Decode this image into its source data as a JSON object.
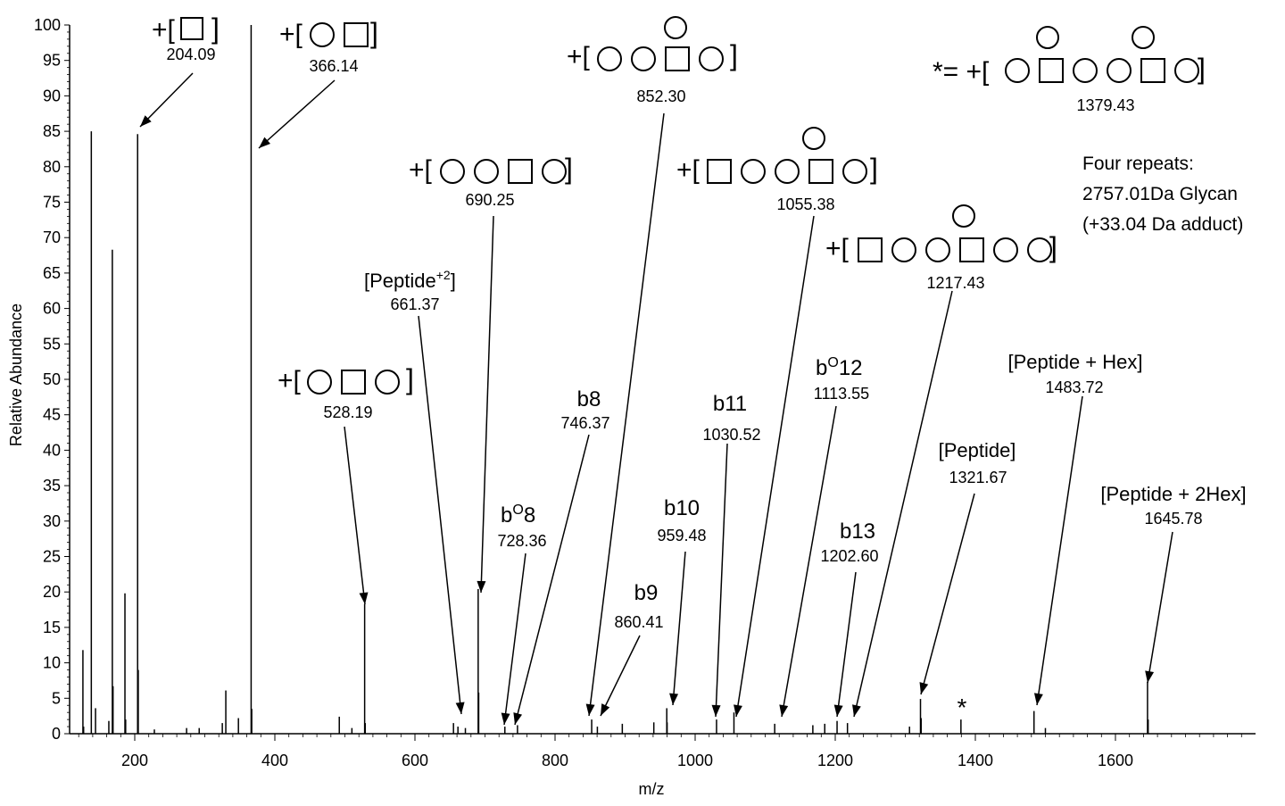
{
  "chart_data": {
    "type": "spectrum",
    "xlabel": "m/z",
    "ylabel": "Relative Abundance",
    "xlim": [
      107,
      1800
    ],
    "ylim": [
      0,
      100
    ],
    "xticks": [
      200,
      400,
      600,
      800,
      1000,
      1200,
      1400,
      1600
    ],
    "yticks": [
      0,
      5,
      10,
      15,
      20,
      25,
      30,
      35,
      40,
      45,
      50,
      55,
      60,
      65,
      70,
      75,
      80,
      85,
      90,
      95,
      100
    ],
    "grid": false,
    "peaks": [
      {
        "mz": 126,
        "intensity": 11.8
      },
      {
        "mz": 127,
        "intensity": 1.0
      },
      {
        "mz": 138,
        "intensity": 85
      },
      {
        "mz": 144,
        "intensity": 3.6
      },
      {
        "mz": 163,
        "intensity": 1.8
      },
      {
        "mz": 168,
        "intensity": 68.3
      },
      {
        "mz": 169,
        "intensity": 6.7
      },
      {
        "mz": 186,
        "intensity": 19.8
      },
      {
        "mz": 187,
        "intensity": 2.0
      },
      {
        "mz": 204.09,
        "intensity": 84.6
      },
      {
        "mz": 205,
        "intensity": 9.0
      },
      {
        "mz": 228,
        "intensity": 0.6
      },
      {
        "mz": 274,
        "intensity": 0.8
      },
      {
        "mz": 292,
        "intensity": 0.8
      },
      {
        "mz": 325,
        "intensity": 1.5
      },
      {
        "mz": 330,
        "intensity": 6.1
      },
      {
        "mz": 348,
        "intensity": 2.2
      },
      {
        "mz": 366.14,
        "intensity": 100
      },
      {
        "mz": 367,
        "intensity": 3.5
      },
      {
        "mz": 492,
        "intensity": 2.4
      },
      {
        "mz": 510,
        "intensity": 0.8
      },
      {
        "mz": 528.19,
        "intensity": 18.3
      },
      {
        "mz": 529,
        "intensity": 1.5
      },
      {
        "mz": 655,
        "intensity": 1.5
      },
      {
        "mz": 661.37,
        "intensity": 1.0
      },
      {
        "mz": 672,
        "intensity": 0.8
      },
      {
        "mz": 690.25,
        "intensity": 20.4
      },
      {
        "mz": 691,
        "intensity": 5.8
      },
      {
        "mz": 728.36,
        "intensity": 1.0
      },
      {
        "mz": 746.37,
        "intensity": 1.2
      },
      {
        "mz": 852.3,
        "intensity": 2.0
      },
      {
        "mz": 860.41,
        "intensity": 1.0
      },
      {
        "mz": 896,
        "intensity": 1.4
      },
      {
        "mz": 941,
        "intensity": 1.6
      },
      {
        "mz": 959.48,
        "intensity": 3.6
      },
      {
        "mz": 960,
        "intensity": 1.6
      },
      {
        "mz": 1030.52,
        "intensity": 2.0
      },
      {
        "mz": 1055.38,
        "intensity": 3.0
      },
      {
        "mz": 1113.55,
        "intensity": 1.4
      },
      {
        "mz": 1168,
        "intensity": 1.2
      },
      {
        "mz": 1185,
        "intensity": 1.4
      },
      {
        "mz": 1202.6,
        "intensity": 1.8
      },
      {
        "mz": 1217.43,
        "intensity": 1.5
      },
      {
        "mz": 1306,
        "intensity": 1.0
      },
      {
        "mz": 1321.67,
        "intensity": 4.9
      },
      {
        "mz": 1322.6,
        "intensity": 2.2
      },
      {
        "mz": 1379.43,
        "intensity": 2.0
      },
      {
        "mz": 1483.72,
        "intensity": 3.2
      },
      {
        "mz": 1500,
        "intensity": 0.8
      },
      {
        "mz": 1645.78,
        "intensity": 7.3
      },
      {
        "mz": 1646.7,
        "intensity": 2.0
      }
    ],
    "annotations": {
      "a204": {
        "prefix": "+[",
        "suffix": "]",
        "mz": "204.09"
      },
      "a366": {
        "prefix": "+[",
        "suffix": "]",
        "mz": "366.14"
      },
      "a528": {
        "prefix": "+[",
        "suffix": "]",
        "mz": "528.19"
      },
      "a690": {
        "prefix": "+[",
        "suffix": "]",
        "mz": "690.25"
      },
      "a852": {
        "prefix": "+[",
        "suffix": "]",
        "mz": "852.30"
      },
      "a1055": {
        "prefix": "+[",
        "suffix": "]",
        "mz": "1055.38"
      },
      "a1217": {
        "prefix": "+[",
        "suffix": "]",
        "mz": "1217.43"
      },
      "a1379": {
        "prefix": "*= +[",
        "suffix": "]",
        "mz": "1379.43"
      },
      "pep2": {
        "name": "[Peptide",
        "sup": "+2",
        "close": "]",
        "mz": "661.37"
      },
      "bo8": {
        "b": "b",
        "o": "O",
        "num": "8",
        "mz": "728.36"
      },
      "b8": {
        "label": "b8",
        "mz": "746.37"
      },
      "b9": {
        "label": "b9",
        "mz": "860.41"
      },
      "b10": {
        "label": "b10",
        "mz": "959.48"
      },
      "b11": {
        "label": "b11",
        "mz": "1030.52"
      },
      "bo12": {
        "b": "b",
        "o": "O",
        "num": "12",
        "mz": "1113.55"
      },
      "b13": {
        "label": "b13",
        "mz": "1202.60"
      },
      "pep": {
        "label": "[Peptide]",
        "mz": "1321.67"
      },
      "hex1": {
        "label": "[Peptide + Hex]",
        "mz": "1483.72"
      },
      "hex2": {
        "label": "[Peptide + 2Hex]",
        "mz": "1645.78"
      },
      "repeats": {
        "line1": "Four repeats:",
        "line2": "2757.01Da Glycan",
        "line3": "(+33.04 Da adduct)"
      },
      "star_label": "*"
    },
    "glycan_glyphs": {
      "a204": [
        "square"
      ],
      "a366": [
        "circle",
        "square"
      ],
      "a528": [
        "circle",
        "square",
        "circle"
      ],
      "a690": [
        "circle",
        "circle",
        "square",
        "circle"
      ],
      "a852": [
        "circle",
        "circle",
        "square",
        "circle"
      ],
      "a1055": [
        "square",
        "circle",
        "circle",
        "square",
        "circle"
      ],
      "a1217": [
        "square",
        "circle",
        "circle",
        "square",
        "circle",
        "circle"
      ],
      "a1379": [
        "circle",
        "square",
        "circle",
        "circle",
        "square",
        "circle"
      ]
    }
  }
}
